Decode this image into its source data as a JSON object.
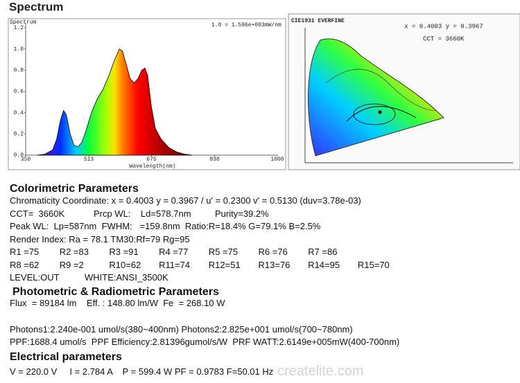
{
  "chart_data": {
    "type": "area",
    "section_title": "Spectrum",
    "y_label": "Spectrum",
    "x_label": "Wavelength(nm)",
    "annotation": "1.0 = 1.596e+003mW/nm",
    "x": [
      380,
      400,
      420,
      430,
      440,
      448,
      455,
      465,
      475,
      485,
      495,
      505,
      520,
      535,
      550,
      565,
      580,
      592,
      600,
      610,
      620,
      630,
      640,
      650,
      658,
      665,
      675,
      685,
      700,
      720,
      740,
      760,
      780
    ],
    "values": [
      0,
      0.01,
      0.05,
      0.15,
      0.33,
      0.42,
      0.38,
      0.2,
      0.09,
      0.08,
      0.12,
      0.22,
      0.4,
      0.53,
      0.62,
      0.75,
      0.9,
      1.0,
      0.98,
      0.85,
      0.72,
      0.68,
      0.72,
      0.8,
      0.82,
      0.75,
      0.45,
      0.25,
      0.15,
      0.07,
      0.03,
      0.01,
      0
    ],
    "xlim": [
      350,
      1000
    ],
    "xticks": [
      350,
      513,
      675,
      838,
      1000
    ],
    "ylim": [
      0,
      1.2
    ],
    "yticks": [
      {
        "value": 0,
        "label": "0.0"
      },
      0.2,
      0.4,
      0.6,
      0.8,
      {
        "value": 1,
        "label": "1.0"
      },
      1.2
    ]
  },
  "cie": {
    "title": "CIE1931   EVERFINE",
    "coords": "x = 0.4003  y = 0.3967",
    "cct": "CCT = 3660K"
  },
  "colorimetric": {
    "heading": "Colorimetric Parameters",
    "lines": [
      [
        "Chromaticity Coordinate: x = 0.4003 y = 0.3967 / u' = 0.2300 v' = 0.5130 (duv=3.78e-03)"
      ],
      [
        "CCT=  3660K",
        "Prcp WL:    Ld=578.7nm",
        "Purity=39.2%"
      ],
      [
        "Peak WL:  Lp=587nm  FWHM:   =159.8nm  Ratio:R=18.4% G=79.1% B=2.5%"
      ],
      [
        "Render Index: Ra = 78.1 TM30:Rf=79 Rg=95"
      ]
    ],
    "r_rows": [
      [
        "R1 =75",
        "R2 =83",
        "R3 =91",
        "R4 =77",
        "R5 =75",
        "R6 =76",
        "R7 =86"
      ],
      [
        "R8 =62",
        "R9 =2",
        "R10=62",
        "R11=74",
        "R12=51",
        "R13=76",
        "R14=95",
        "R15=70"
      ]
    ],
    "level": [
      "LEVEL:OUT",
      "WHITE:ANSI_3500K"
    ]
  },
  "photometric": {
    "heading": "Photometric & Radiometric Parameters",
    "lines": [
      "Flux  = 89184 lm    Eff. : 148.80 lm/W  Fe  = 268.10 W",
      "Photons1:2.240e-001 umol/s(380~400nm) Photons2:2.825e+001 umol/s(700~780nm)",
      "PPF:1688.4 umol/s  PPF Efficiency:2.81396gumol/s/W  PRF WATT:2.6149e+005mW(400-700nm)"
    ]
  },
  "electrical": {
    "heading": "Electrical parameters",
    "line": "V = 220.0 V     I = 2.784 A    P = 599.4 W PF = 0.9783 F=50.01 Hz"
  },
  "watermark": "createlite.com"
}
